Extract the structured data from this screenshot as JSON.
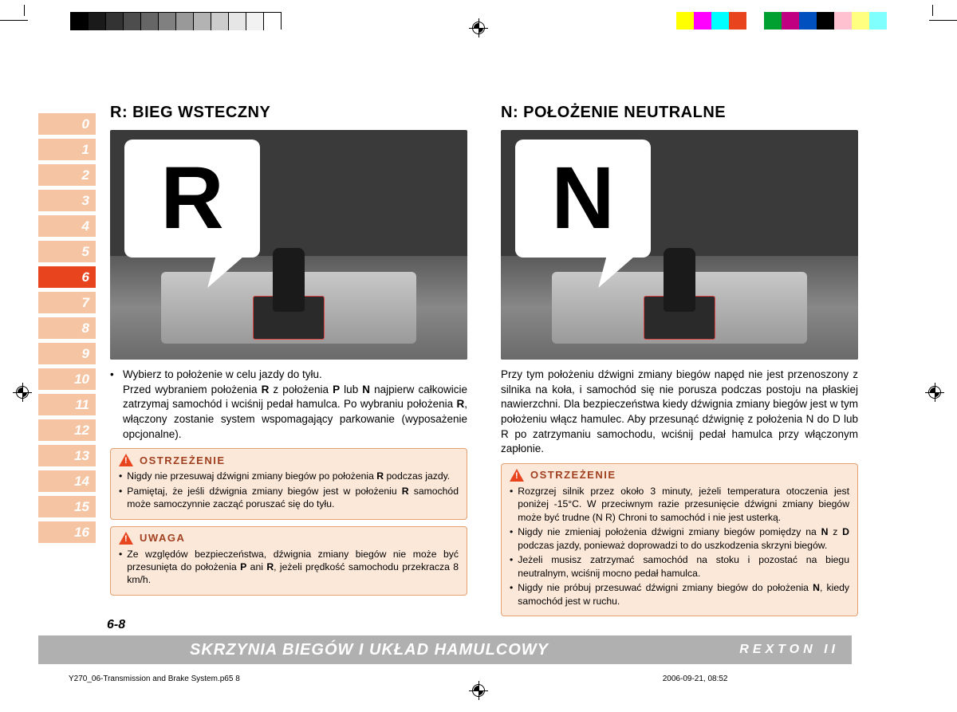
{
  "print": {
    "grayscale": [
      "#000000",
      "#1a1a1a",
      "#333333",
      "#4d4d4d",
      "#666666",
      "#808080",
      "#999999",
      "#b3b3b3",
      "#cccccc",
      "#e6e6e6",
      "#f2f2f2",
      "#ffffff"
    ],
    "colors": [
      "#ffff00",
      "#ff00ff",
      "#00ffff",
      "#e8451f",
      "#ffffff",
      "#00a030",
      "#c00080",
      "#0050c0",
      "#000000",
      "#ffc0d0",
      "#ffff80",
      "#80ffff"
    ]
  },
  "tabs": [
    "0",
    "1",
    "2",
    "3",
    "4",
    "5",
    "6",
    "7",
    "8",
    "9",
    "10",
    "11",
    "12",
    "13",
    "14",
    "15",
    "16"
  ],
  "tab_active_index": 6,
  "tab_colors": {
    "inactive": "#f5c4a3",
    "active": "#e8451f"
  },
  "left": {
    "heading": "R: BIEG WSTECZNY",
    "callout_letter": "R",
    "bullet": "Wybierz to położenie w celu jazdy do tyłu.",
    "text": "Przed wybraniem położenia R z położenia P lub N najpierw całkowicie zatrzymaj samochód i wciśnij pedał hamulca. Po wybraniu położenia R, włączony zostanie system wspomagający parkowanie (wyposażenie opcjonalne).",
    "warn1_title": "OSTRZEŻENIE",
    "warn1_items": [
      "Nigdy nie przesuwaj dźwigni zmiany biegów po położenia R podczas jazdy.",
      "Pamiętaj, że jeśli dźwignia zmiany biegów jest w położeniu R samochód może samoczynnie zacząć poruszać się do tyłu."
    ],
    "warn2_title": "UWAGA",
    "warn2_items": [
      "Ze względów bezpieczeństwa, dźwignia zmiany biegów nie może być przesunięta do położenia P ani R, jeżeli prędkość samochodu przekracza 8 km/h."
    ]
  },
  "right": {
    "heading": "N: POŁOŻENIE NEUTRALNE",
    "callout_letter": "N",
    "text": "Przy tym położeniu dźwigni zmiany biegów napęd nie jest przenoszony z silnika na koła, i samochód się nie porusza podczas postoju na płaskiej nawierzchni. Dla bezpieczeństwa kiedy dźwignia zmiany biegów jest w tym położeniu włącz hamulec. Aby przesunąć dźwignię z położenia N do D lub R po zatrzymaniu samochodu, wciśnij pedał hamulca przy włączonym zapłonie.",
    "warn_title": "OSTRZEŻENIE",
    "warn_items": [
      "Rozgrzej silnik przez około 3 minuty, jeżeli temperatura otoczenia jest poniżej -15°C. W przeciwnym razie przesunięcie dźwigni zmiany biegów może być trudne (N R) Chroni to samochód i nie jest usterką.",
      "Nigdy nie zmieniaj położenia dźwigni zmiany biegów pomiędzy na N z D podczas jazdy, ponieważ doprowadzi to do uszkodzenia skrzyni biegów.",
      "Jeżeli musisz zatrzymać samochód na stoku i pozostać na biegu neutralnym, wciśnij mocno pedał hamulca.",
      "Nigdy nie próbuj przesuwać dźwigni zmiany biegów do położenia N, kiedy samochód jest w ruchu."
    ]
  },
  "footer": {
    "page": "6-8",
    "title": "SKRZYNIA BIEGÓW I UKŁAD HAMULCOWY",
    "brand": "REXTON II",
    "file": "Y270_06-Transmission and Brake System.p65",
    "file_page": "8",
    "date": "2006-09-21, 08:52"
  }
}
